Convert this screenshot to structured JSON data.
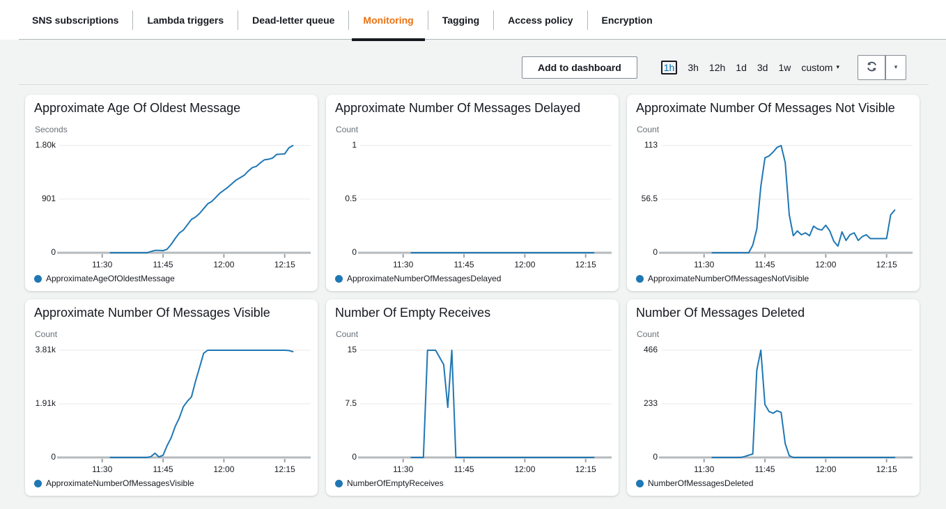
{
  "tabs": {
    "items": [
      {
        "label": "SNS subscriptions",
        "active": false
      },
      {
        "label": "Lambda triggers",
        "active": false
      },
      {
        "label": "Dead-letter queue",
        "active": false
      },
      {
        "label": "Monitoring",
        "active": true
      },
      {
        "label": "Tagging",
        "active": false
      },
      {
        "label": "Access policy",
        "active": false
      },
      {
        "label": "Encryption",
        "active": false
      }
    ]
  },
  "toolbar": {
    "add_to_dashboard_label": "Add to dashboard",
    "time_ranges": [
      {
        "label": "1h",
        "selected": true
      },
      {
        "label": "3h",
        "selected": false
      },
      {
        "label": "12h",
        "selected": false
      },
      {
        "label": "1d",
        "selected": false
      },
      {
        "label": "3d",
        "selected": false
      },
      {
        "label": "1w",
        "selected": false
      }
    ],
    "custom_label": "custom"
  },
  "icons": {
    "refresh": {
      "name": "refresh-icon",
      "glyph": "⟳"
    },
    "caret_down": {
      "name": "caret-down-icon",
      "glyph": "▾"
    }
  },
  "colors": {
    "accent_orange": "#ec7211",
    "active_tab_underline": "#16191f",
    "line_blue": "#1f77b4",
    "selected_range_blue": "#0073bb",
    "page_background": "#f2f3f3",
    "card_background": "#ffffff",
    "gridline": "#e8eaea",
    "axis_gray": "#b5babd",
    "unit_text_gray": "#687078"
  },
  "chart_data": [
    {
      "type": "line",
      "title": "Approximate Age Of Oldest Message",
      "ylabel": "Seconds",
      "legend": "ApproximateAgeOfOldestMessage",
      "ylim": [
        0,
        1800
      ],
      "grid": true,
      "legend_position": "bottom-left",
      "y_ticks": [
        {
          "label": "1.80k",
          "value": 1800
        },
        {
          "label": "901",
          "value": 901
        },
        {
          "label": "0",
          "value": 0
        }
      ],
      "x_ticks": [
        {
          "label": "11:30",
          "minute": 690
        },
        {
          "label": "11:45",
          "minute": 705
        },
        {
          "label": "12:00",
          "minute": 720
        },
        {
          "label": "12:15",
          "minute": 735
        }
      ],
      "xlim_minutes": [
        679.4,
        741.4
      ],
      "series": [
        {
          "name": "ApproximateAgeOfOldestMessage",
          "points": [
            [
              692,
              0
            ],
            [
              701,
              0
            ],
            [
              702,
              20
            ],
            [
              703,
              40
            ],
            [
              704,
              40
            ],
            [
              705,
              35
            ],
            [
              706,
              60
            ],
            [
              707,
              140
            ],
            [
              708,
              240
            ],
            [
              709,
              330
            ],
            [
              710,
              380
            ],
            [
              711,
              470
            ],
            [
              712,
              560
            ],
            [
              713,
              600
            ],
            [
              714,
              660
            ],
            [
              715,
              740
            ],
            [
              716,
              820
            ],
            [
              717,
              860
            ],
            [
              718,
              930
            ],
            [
              719,
              1000
            ],
            [
              720,
              1050
            ],
            [
              721,
              1100
            ],
            [
              722,
              1160
            ],
            [
              723,
              1220
            ],
            [
              724,
              1260
            ],
            [
              725,
              1300
            ],
            [
              726,
              1370
            ],
            [
              727,
              1430
            ],
            [
              728,
              1450
            ],
            [
              729,
              1510
            ],
            [
              730,
              1560
            ],
            [
              731,
              1570
            ],
            [
              732,
              1590
            ],
            [
              733,
              1650
            ],
            [
              734,
              1655
            ],
            [
              735,
              1660
            ],
            [
              736,
              1760
            ],
            [
              737,
              1800
            ]
          ]
        }
      ]
    },
    {
      "type": "line",
      "title": "Approximate Number Of Messages Delayed",
      "ylabel": "Count",
      "legend": "ApproximateNumberOfMessagesDelayed",
      "ylim": [
        0,
        1
      ],
      "grid": true,
      "legend_position": "bottom-left",
      "y_ticks": [
        {
          "label": "1",
          "value": 1
        },
        {
          "label": "0.5",
          "value": 0.5
        },
        {
          "label": "0",
          "value": 0
        }
      ],
      "x_ticks": [
        {
          "label": "11:30",
          "minute": 690
        },
        {
          "label": "11:45",
          "minute": 705
        },
        {
          "label": "12:00",
          "minute": 720
        },
        {
          "label": "12:15",
          "minute": 735
        }
      ],
      "xlim_minutes": [
        679.4,
        741.4
      ],
      "series": [
        {
          "name": "ApproximateNumberOfMessagesDelayed",
          "points": [
            [
              692,
              0
            ],
            [
              737,
              0
            ]
          ]
        }
      ]
    },
    {
      "type": "line",
      "title": "Approximate Number Of Messages Not Visible",
      "ylabel": "Count",
      "legend": "ApproximateNumberOfMessagesNotVisible",
      "ylim": [
        0,
        113
      ],
      "grid": true,
      "legend_position": "bottom-left",
      "y_ticks": [
        {
          "label": "113",
          "value": 113
        },
        {
          "label": "56.5",
          "value": 56.5
        },
        {
          "label": "0",
          "value": 0
        }
      ],
      "x_ticks": [
        {
          "label": "11:30",
          "minute": 690
        },
        {
          "label": "11:45",
          "minute": 705
        },
        {
          "label": "12:00",
          "minute": 720
        },
        {
          "label": "12:15",
          "minute": 735
        }
      ],
      "xlim_minutes": [
        679.4,
        741.4
      ],
      "series": [
        {
          "name": "ApproximateNumberOfMessagesNotVisible",
          "points": [
            [
              692,
              0
            ],
            [
              701,
              0
            ],
            [
              702,
              8
            ],
            [
              703,
              25
            ],
            [
              704,
              70
            ],
            [
              705,
              100
            ],
            [
              706,
              102
            ],
            [
              707,
              106
            ],
            [
              708,
              111
            ],
            [
              709,
              113
            ],
            [
              710,
              95
            ],
            [
              711,
              40
            ],
            [
              712,
              18
            ],
            [
              713,
              23
            ],
            [
              714,
              19
            ],
            [
              715,
              21
            ],
            [
              716,
              18
            ],
            [
              717,
              28
            ],
            [
              718,
              25
            ],
            [
              719,
              24
            ],
            [
              720,
              29
            ],
            [
              721,
              23
            ],
            [
              722,
              12
            ],
            [
              723,
              7
            ],
            [
              724,
              22
            ],
            [
              725,
              13
            ],
            [
              726,
              19
            ],
            [
              727,
              21
            ],
            [
              728,
              13
            ],
            [
              729,
              17
            ],
            [
              730,
              19
            ],
            [
              731,
              15
            ],
            [
              732,
              15
            ],
            [
              733,
              15
            ],
            [
              734,
              15
            ],
            [
              735,
              15
            ],
            [
              736,
              40
            ],
            [
              737,
              45
            ]
          ]
        }
      ]
    },
    {
      "type": "line",
      "title": "Approximate Number Of Messages Visible",
      "ylabel": "Count",
      "legend": "ApproximateNumberOfMessagesVisible",
      "ylim": [
        0,
        3810
      ],
      "grid": true,
      "legend_position": "bottom-left",
      "y_ticks": [
        {
          "label": "3.81k",
          "value": 3810
        },
        {
          "label": "1.91k",
          "value": 1905
        },
        {
          "label": "0",
          "value": 0
        }
      ],
      "x_ticks": [
        {
          "label": "11:30",
          "minute": 690
        },
        {
          "label": "11:45",
          "minute": 705
        },
        {
          "label": "12:00",
          "minute": 720
        },
        {
          "label": "12:15",
          "minute": 735
        }
      ],
      "xlim_minutes": [
        679.4,
        741.4
      ],
      "series": [
        {
          "name": "ApproximateNumberOfMessagesVisible",
          "points": [
            [
              692,
              0
            ],
            [
              701,
              0
            ],
            [
              702,
              30
            ],
            [
              703,
              150
            ],
            [
              704,
              20
            ],
            [
              705,
              80
            ],
            [
              706,
              420
            ],
            [
              707,
              700
            ],
            [
              708,
              1100
            ],
            [
              709,
              1400
            ],
            [
              710,
              1800
            ],
            [
              711,
              2000
            ],
            [
              712,
              2150
            ],
            [
              713,
              2700
            ],
            [
              714,
              3200
            ],
            [
              715,
              3700
            ],
            [
              716,
              3810
            ],
            [
              735,
              3810
            ],
            [
              736,
              3800
            ],
            [
              737,
              3760
            ]
          ]
        }
      ]
    },
    {
      "type": "line",
      "title": "Number Of Empty Receives",
      "ylabel": "Count",
      "legend": "NumberOfEmptyReceives",
      "ylim": [
        0,
        15
      ],
      "grid": true,
      "legend_position": "bottom-left",
      "y_ticks": [
        {
          "label": "15",
          "value": 15
        },
        {
          "label": "7.5",
          "value": 7.5
        },
        {
          "label": "0",
          "value": 0
        }
      ],
      "x_ticks": [
        {
          "label": "11:30",
          "minute": 690
        },
        {
          "label": "11:45",
          "minute": 705
        },
        {
          "label": "12:00",
          "minute": 720
        },
        {
          "label": "12:15",
          "minute": 735
        }
      ],
      "xlim_minutes": [
        679.4,
        741.4
      ],
      "series": [
        {
          "name": "NumberOfEmptyReceives",
          "points": [
            [
              692,
              0
            ],
            [
              695,
              0
            ],
            [
              696,
              15
            ],
            [
              697,
              15
            ],
            [
              698,
              15
            ],
            [
              699,
              14
            ],
            [
              700,
              13
            ],
            [
              701,
              7
            ],
            [
              702,
              15
            ],
            [
              703,
              0
            ],
            [
              737,
              0
            ]
          ]
        }
      ]
    },
    {
      "type": "line",
      "title": "Number Of Messages Deleted",
      "ylabel": "Count",
      "legend": "NumberOfMessagesDeleted",
      "ylim": [
        0,
        466
      ],
      "grid": true,
      "legend_position": "bottom-left",
      "y_ticks": [
        {
          "label": "466",
          "value": 466
        },
        {
          "label": "233",
          "value": 233
        },
        {
          "label": "0",
          "value": 0
        }
      ],
      "x_ticks": [
        {
          "label": "11:30",
          "minute": 690
        },
        {
          "label": "11:45",
          "minute": 705
        },
        {
          "label": "12:00",
          "minute": 720
        },
        {
          "label": "12:15",
          "minute": 735
        }
      ],
      "xlim_minutes": [
        679.4,
        741.4
      ],
      "series": [
        {
          "name": "NumberOfMessagesDeleted",
          "points": [
            [
              692,
              0
            ],
            [
              699,
              0
            ],
            [
              700,
              4
            ],
            [
              701,
              10
            ],
            [
              702,
              15
            ],
            [
              703,
              380
            ],
            [
              704,
              466
            ],
            [
              705,
              230
            ],
            [
              706,
              200
            ],
            [
              707,
              192
            ],
            [
              708,
              203
            ],
            [
              709,
              196
            ],
            [
              710,
              60
            ],
            [
              711,
              8
            ],
            [
              712,
              0
            ],
            [
              737,
              0
            ]
          ]
        }
      ]
    }
  ]
}
